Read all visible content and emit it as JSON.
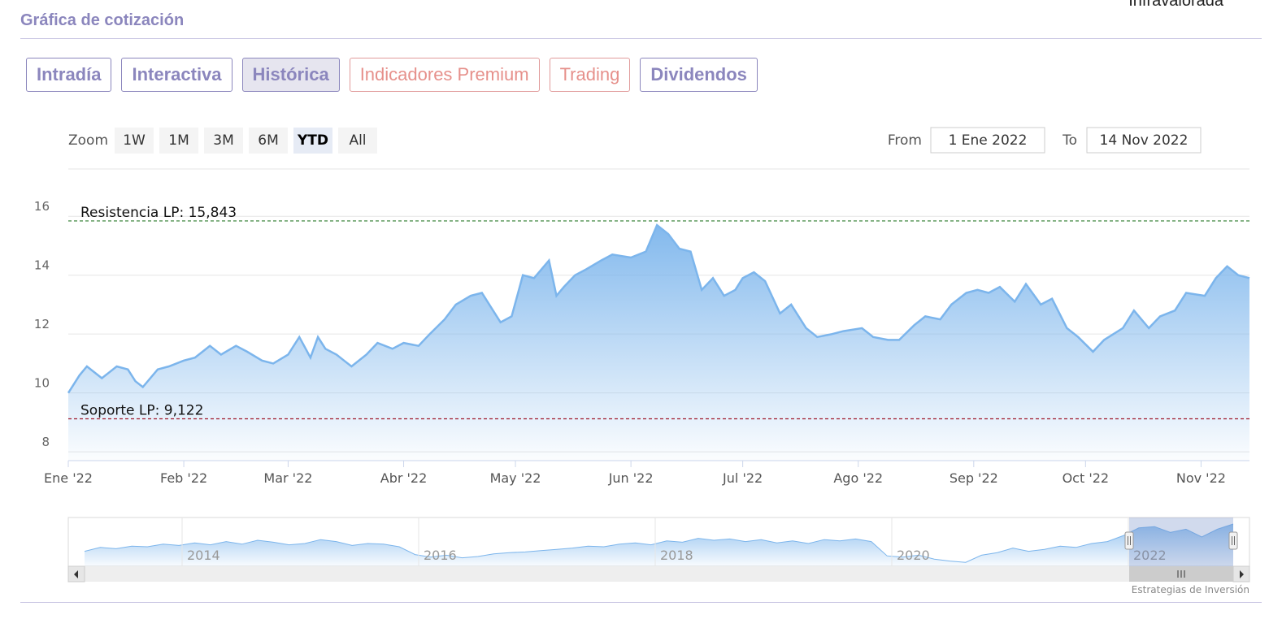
{
  "header": {
    "section_title": "Gráfica de cotización",
    "corner_text": "Infravalorada"
  },
  "tabs": [
    {
      "label": "Intradía",
      "active": false,
      "style": "normal"
    },
    {
      "label": "Interactiva",
      "active": false,
      "style": "normal"
    },
    {
      "label": "Histórica",
      "active": true,
      "style": "normal"
    },
    {
      "label": "Indicadores Premium",
      "active": false,
      "style": "premium"
    },
    {
      "label": "Trading",
      "active": false,
      "style": "premium"
    },
    {
      "label": "Dividendos",
      "active": false,
      "style": "normal"
    }
  ],
  "range_selector": {
    "zoom_label": "Zoom",
    "buttons": [
      "1W",
      "1M",
      "3M",
      "6M",
      "YTD",
      "All"
    ],
    "selected": "YTD",
    "from_label": "From",
    "from_value": "1 Ene 2022",
    "to_label": "To",
    "to_value": "14 Nov 2022"
  },
  "credit": "Estrategias de Inversión",
  "colors": {
    "accent": "#8b86bd",
    "premium": "#e6908b",
    "series_line": "#7cb5ec",
    "resistance": "#2a7a2a",
    "support": "#a0192b"
  },
  "chart_data": {
    "type": "area",
    "x_label_ticks": [
      "Ene '22",
      "Feb '22",
      "Mar '22",
      "Abr '22",
      "May '22",
      "Jun '22",
      "Jul '22",
      "Ago '22",
      "Sep '22",
      "Oct '22",
      "Nov '22"
    ],
    "ylim": [
      7.7,
      17
    ],
    "y_ticks": [
      8,
      10,
      12,
      14,
      16
    ],
    "grid": true,
    "plot_lines": [
      {
        "label": "Resistencia LP: 15,843",
        "value": 15.843,
        "style": "dashed"
      },
      {
        "label": "Soporte LP: 9,122",
        "value": 9.122,
        "style": "dashed"
      }
    ],
    "series": [
      {
        "x": [
          "2022-01-01",
          "2022-01-04",
          "2022-01-06",
          "2022-01-10",
          "2022-01-12",
          "2022-01-14",
          "2022-01-17",
          "2022-01-19",
          "2022-01-21",
          "2022-01-25",
          "2022-01-28",
          "2022-02-01",
          "2022-02-04",
          "2022-02-08",
          "2022-02-11",
          "2022-02-15",
          "2022-02-18",
          "2022-02-22",
          "2022-02-25",
          "2022-03-01",
          "2022-03-04",
          "2022-03-07",
          "2022-03-09",
          "2022-03-11",
          "2022-03-14",
          "2022-03-16",
          "2022-03-18",
          "2022-03-22",
          "2022-03-25",
          "2022-03-29",
          "2022-04-01",
          "2022-04-05",
          "2022-04-08",
          "2022-04-12",
          "2022-04-15",
          "2022-04-19",
          "2022-04-22",
          "2022-04-27",
          "2022-04-30",
          "2022-05-03",
          "2022-05-06",
          "2022-05-10",
          "2022-05-12",
          "2022-05-14",
          "2022-05-17",
          "2022-05-20",
          "2022-05-24",
          "2022-05-27",
          "2022-06-01",
          "2022-06-05",
          "2022-06-08",
          "2022-06-11",
          "2022-06-14",
          "2022-06-17",
          "2022-06-20",
          "2022-06-23",
          "2022-06-26",
          "2022-06-29",
          "2022-07-01",
          "2022-07-04",
          "2022-07-07",
          "2022-07-11",
          "2022-07-14",
          "2022-07-18",
          "2022-07-21",
          "2022-07-25",
          "2022-07-28",
          "2022-08-02",
          "2022-08-05",
          "2022-08-09",
          "2022-08-12",
          "2022-08-16",
          "2022-08-19",
          "2022-08-23",
          "2022-08-26",
          "2022-08-30",
          "2022-09-02",
          "2022-09-05",
          "2022-09-08",
          "2022-09-12",
          "2022-09-15",
          "2022-09-19",
          "2022-09-22",
          "2022-09-26",
          "2022-09-29",
          "2022-10-03",
          "2022-10-06",
          "2022-10-11",
          "2022-10-14",
          "2022-10-18",
          "2022-10-21",
          "2022-10-25",
          "2022-10-28",
          "2022-11-02",
          "2022-11-05",
          "2022-11-08",
          "2022-11-11",
          "2022-11-14"
        ],
        "values": [
          10.0,
          10.6,
          10.9,
          10.5,
          10.7,
          10.9,
          10.8,
          10.4,
          10.2,
          10.8,
          10.9,
          11.1,
          11.2,
          11.6,
          11.3,
          11.6,
          11.4,
          11.1,
          11.0,
          11.3,
          11.9,
          11.2,
          11.9,
          11.5,
          11.3,
          11.1,
          10.9,
          11.3,
          11.7,
          11.5,
          11.7,
          11.6,
          12.0,
          12.5,
          13.0,
          13.3,
          13.4,
          12.4,
          12.6,
          14.0,
          13.9,
          14.5,
          13.3,
          13.6,
          14.0,
          14.2,
          14.5,
          14.7,
          14.6,
          14.8,
          15.7,
          15.4,
          14.9,
          14.8,
          13.5,
          13.9,
          13.3,
          13.5,
          13.9,
          14.1,
          13.8,
          12.7,
          13.0,
          12.2,
          11.9,
          12.0,
          12.1,
          12.2,
          11.9,
          11.8,
          11.8,
          12.3,
          12.6,
          12.5,
          13.0,
          13.4,
          13.5,
          13.4,
          13.6,
          13.1,
          13.7,
          13.0,
          13.2,
          12.2,
          11.9,
          11.4,
          11.8,
          12.2,
          12.8,
          12.2,
          12.6,
          12.8,
          13.4,
          13.3,
          13.9,
          14.3,
          14.0,
          13.9
        ]
      }
    ],
    "navigator": {
      "x_ticks": [
        "2014",
        "2016",
        "2018",
        "2020",
        "2022"
      ],
      "values": [
        9.8,
        10.4,
        10.2,
        10.6,
        10.5,
        10.9,
        10.7,
        11.1,
        10.8,
        11.3,
        10.9,
        11.5,
        11.2,
        10.8,
        11.0,
        11.6,
        11.3,
        10.7,
        11.0,
        10.9,
        10.5,
        9.3,
        8.9,
        9.2,
        8.8,
        9.0,
        9.4,
        9.6,
        9.7,
        9.9,
        10.1,
        10.3,
        10.6,
        10.5,
        10.9,
        11.1,
        10.8,
        11.4,
        11.2,
        11.8,
        11.5,
        11.7,
        11.3,
        11.6,
        11.1,
        11.4,
        11.0,
        11.6,
        11.4,
        11.7,
        11.3,
        9.1,
        8.9,
        9.2,
        8.6,
        8.3,
        8.1,
        9.2,
        9.6,
        10.3,
        9.8,
        10.1,
        10.6,
        10.4,
        11.0,
        11.3,
        12.2,
        13.4,
        13.6,
        12.7,
        13.2,
        12.0,
        13.2,
        14.0
      ],
      "selected_range": "YTD"
    }
  }
}
